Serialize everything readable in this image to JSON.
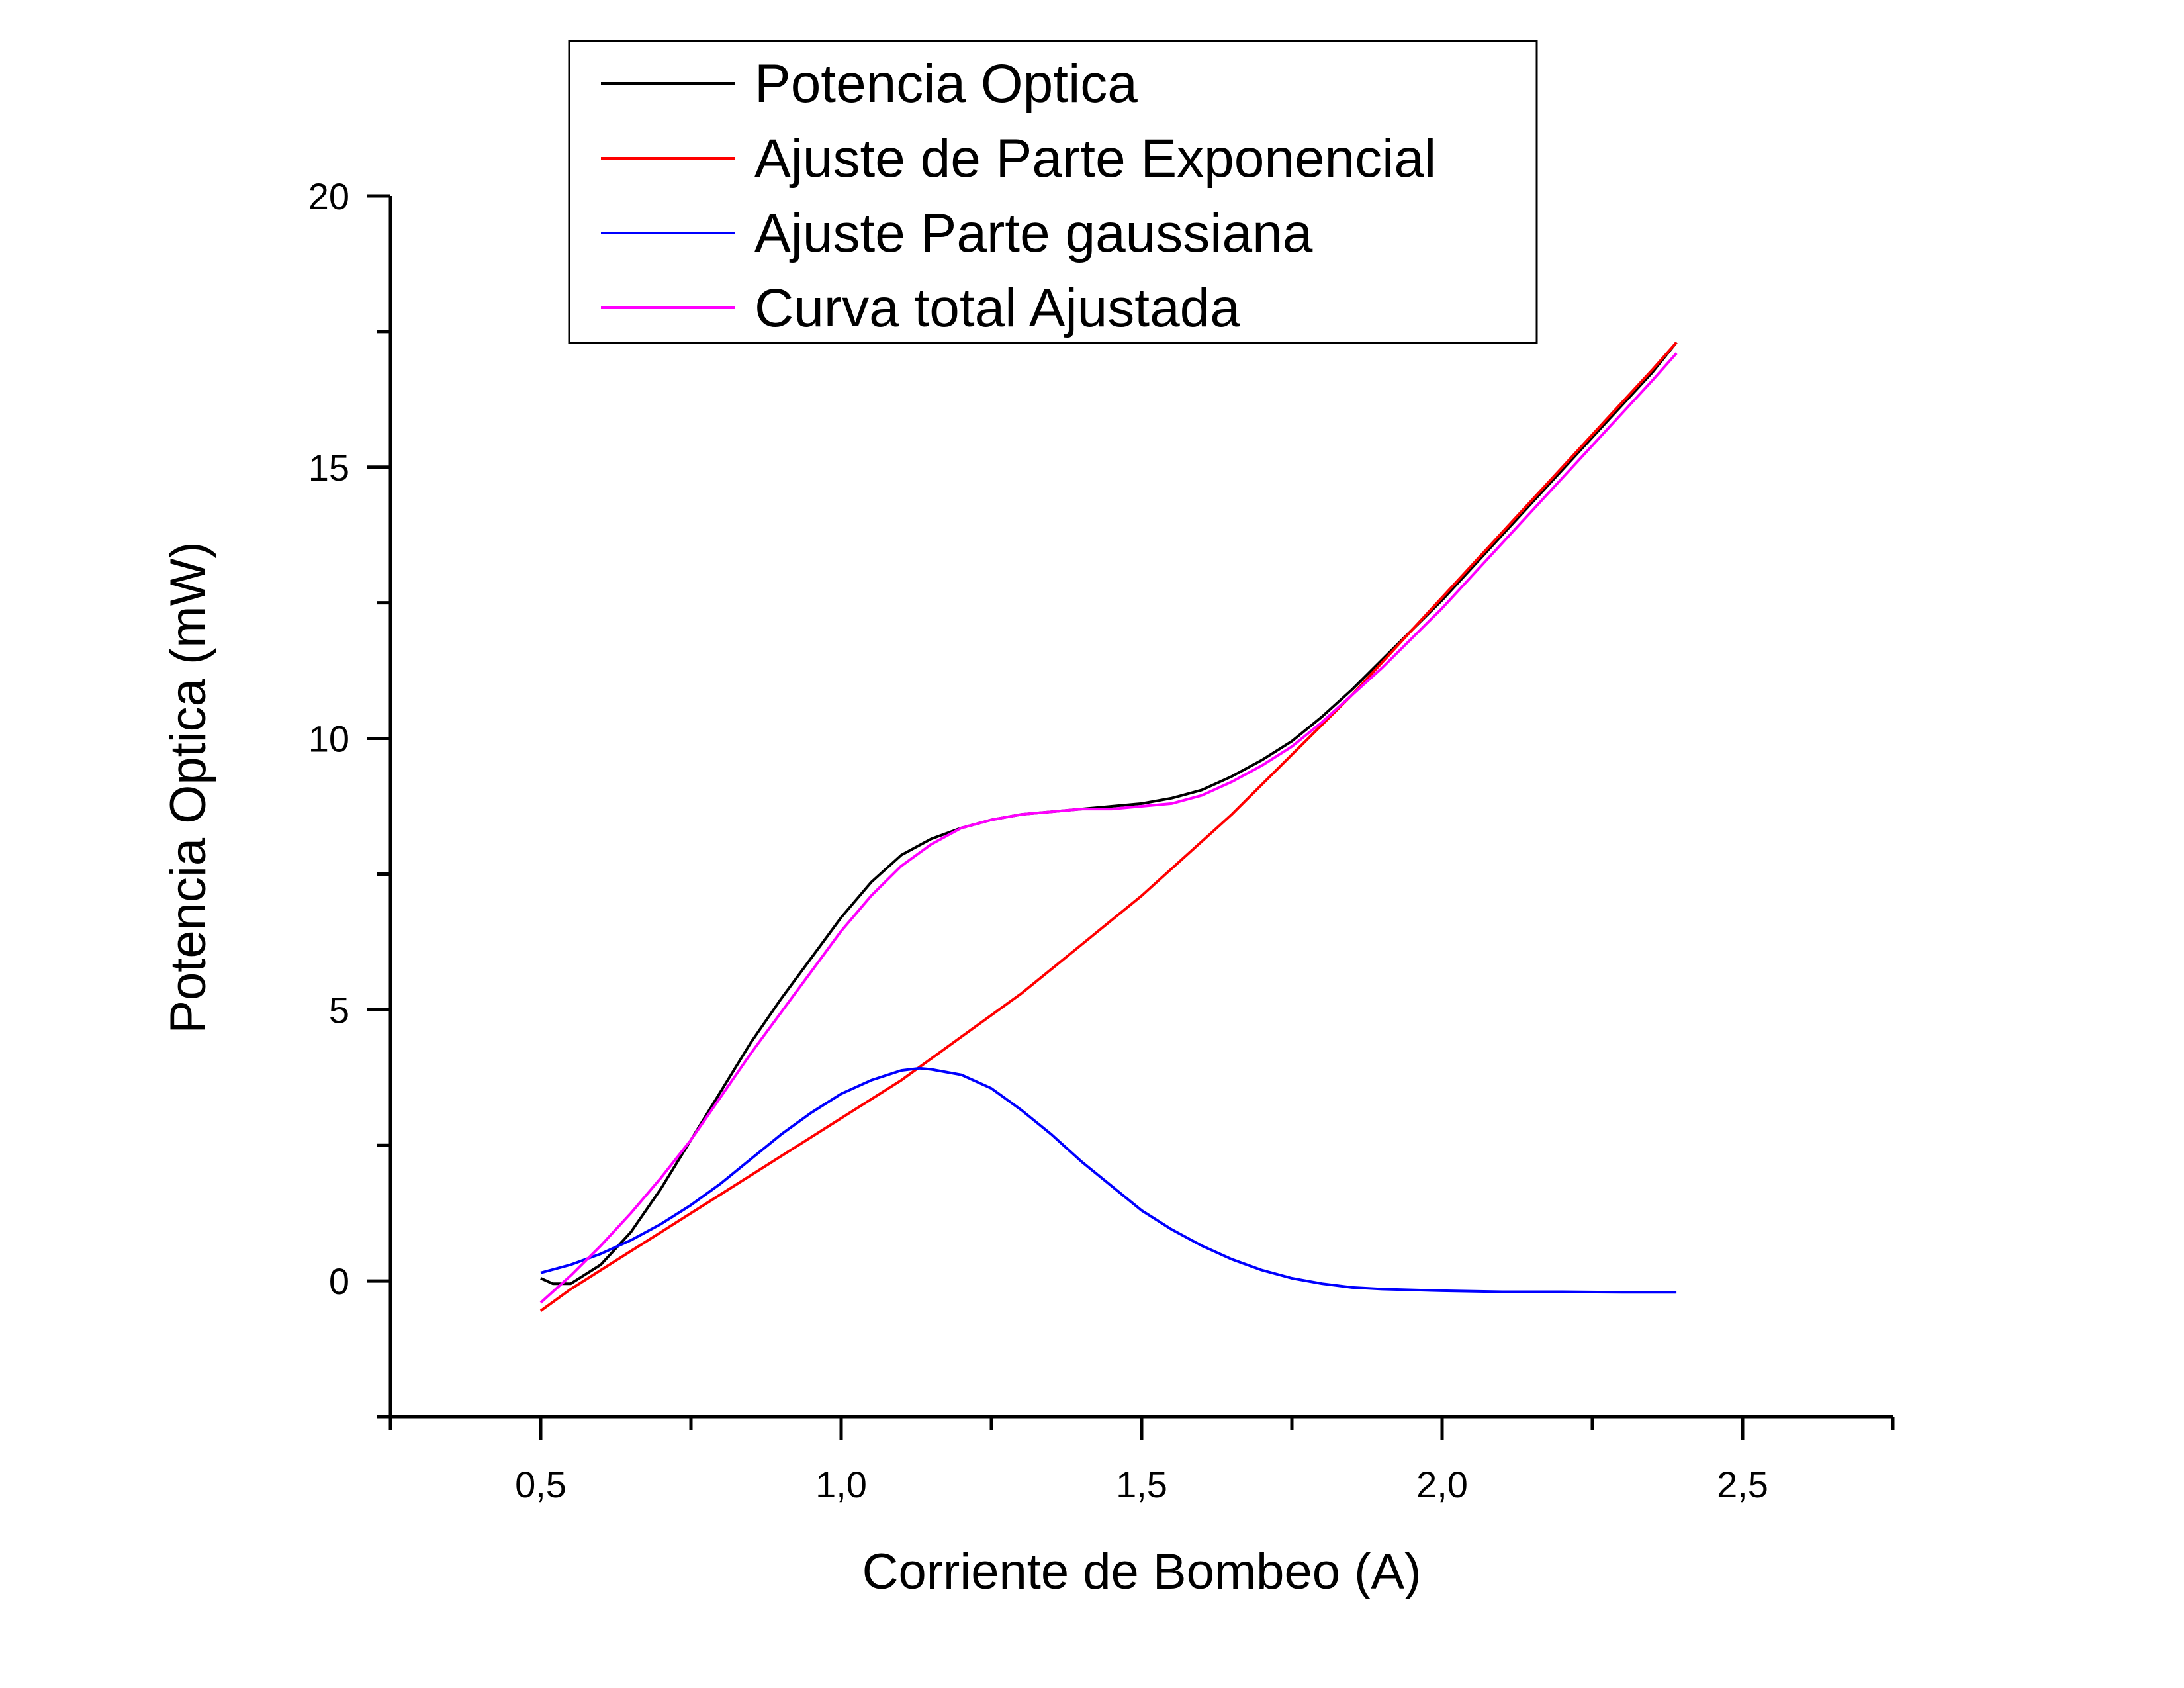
{
  "chart_data": {
    "type": "line",
    "xlabel": "Corriente de Bombeo (A)",
    "ylabel": "Potencia Optica (mW)",
    "xlim": [
      0.25,
      2.75
    ],
    "ylim": [
      -2.5,
      20
    ],
    "x_ticks": [
      {
        "value": 0.5,
        "label": "0,5"
      },
      {
        "value": 1.0,
        "label": "1,0"
      },
      {
        "value": 1.5,
        "label": "1,5"
      },
      {
        "value": 2.0,
        "label": "2,0"
      },
      {
        "value": 2.5,
        "label": "2,5"
      }
    ],
    "x_minor_ticks": [
      0.25,
      0.75,
      1.25,
      1.75,
      2.25,
      2.75
    ],
    "y_ticks": [
      {
        "value": 0,
        "label": "0"
      },
      {
        "value": 5,
        "label": "5"
      },
      {
        "value": 10,
        "label": "10"
      },
      {
        "value": 15,
        "label": "15"
      },
      {
        "value": 20,
        "label": "20"
      }
    ],
    "y_minor_ticks": [
      -2.5,
      2.5,
      7.5,
      12.5,
      17.5
    ],
    "grid": false,
    "legend_position": "top-center",
    "series": [
      {
        "name": "Potencia Optica",
        "color": "#000000",
        "points": [
          [
            0.5,
            0.05
          ],
          [
            0.52,
            -0.05
          ],
          [
            0.55,
            -0.05
          ],
          [
            0.6,
            0.3
          ],
          [
            0.65,
            0.9
          ],
          [
            0.7,
            1.7
          ],
          [
            0.75,
            2.6
          ],
          [
            0.8,
            3.5
          ],
          [
            0.85,
            4.4
          ],
          [
            0.9,
            5.2
          ],
          [
            0.95,
            5.95
          ],
          [
            1.0,
            6.7
          ],
          [
            1.05,
            7.35
          ],
          [
            1.1,
            7.85
          ],
          [
            1.15,
            8.15
          ],
          [
            1.2,
            8.35
          ],
          [
            1.25,
            8.5
          ],
          [
            1.3,
            8.6
          ],
          [
            1.35,
            8.65
          ],
          [
            1.4,
            8.7
          ],
          [
            1.45,
            8.75
          ],
          [
            1.5,
            8.8
          ],
          [
            1.55,
            8.9
          ],
          [
            1.6,
            9.05
          ],
          [
            1.65,
            9.3
          ],
          [
            1.7,
            9.6
          ],
          [
            1.75,
            9.95
          ],
          [
            1.8,
            10.4
          ],
          [
            1.85,
            10.9
          ],
          [
            1.9,
            11.45
          ],
          [
            1.95,
            12.0
          ],
          [
            2.0,
            12.55
          ],
          [
            2.05,
            13.15
          ],
          [
            2.1,
            13.75
          ],
          [
            2.15,
            14.35
          ],
          [
            2.2,
            14.95
          ],
          [
            2.25,
            15.55
          ],
          [
            2.3,
            16.15
          ],
          [
            2.35,
            16.75
          ],
          [
            2.39,
            17.3
          ]
        ]
      },
      {
        "name": "Ajuste de Parte Exponencial",
        "color": "#ff0000",
        "points": [
          [
            0.5,
            -0.55
          ],
          [
            0.55,
            -0.15
          ],
          [
            0.6,
            0.2
          ],
          [
            0.65,
            0.55
          ],
          [
            0.7,
            0.9
          ],
          [
            0.75,
            1.25
          ],
          [
            0.8,
            1.6
          ],
          [
            0.85,
            1.95
          ],
          [
            0.9,
            2.3
          ],
          [
            0.95,
            2.65
          ],
          [
            1.0,
            3.0
          ],
          [
            1.05,
            3.35
          ],
          [
            1.1,
            3.7
          ],
          [
            1.15,
            4.1
          ],
          [
            1.2,
            4.5
          ],
          [
            1.25,
            4.9
          ],
          [
            1.3,
            5.3
          ],
          [
            1.35,
            5.75
          ],
          [
            1.4,
            6.2
          ],
          [
            1.45,
            6.65
          ],
          [
            1.5,
            7.1
          ],
          [
            1.55,
            7.6
          ],
          [
            1.6,
            8.1
          ],
          [
            1.65,
            8.6
          ],
          [
            1.7,
            9.15
          ],
          [
            1.75,
            9.7
          ],
          [
            1.8,
            10.25
          ],
          [
            1.85,
            10.8
          ],
          [
            1.9,
            11.4
          ],
          [
            1.95,
            12.0
          ],
          [
            2.0,
            12.6
          ],
          [
            2.05,
            13.2
          ],
          [
            2.1,
            13.8
          ],
          [
            2.15,
            14.4
          ],
          [
            2.2,
            15.0
          ],
          [
            2.25,
            15.6
          ],
          [
            2.3,
            16.2
          ],
          [
            2.35,
            16.8
          ],
          [
            2.39,
            17.3
          ]
        ]
      },
      {
        "name": "Ajuste Parte gaussiana",
        "color": "#0000ff",
        "points": [
          [
            0.5,
            0.15
          ],
          [
            0.55,
            0.3
          ],
          [
            0.6,
            0.5
          ],
          [
            0.65,
            0.75
          ],
          [
            0.7,
            1.05
          ],
          [
            0.75,
            1.4
          ],
          [
            0.8,
            1.8
          ],
          [
            0.85,
            2.25
          ],
          [
            0.9,
            2.7
          ],
          [
            0.95,
            3.1
          ],
          [
            1.0,
            3.45
          ],
          [
            1.05,
            3.7
          ],
          [
            1.1,
            3.88
          ],
          [
            1.13,
            3.92
          ],
          [
            1.15,
            3.9
          ],
          [
            1.2,
            3.8
          ],
          [
            1.25,
            3.55
          ],
          [
            1.3,
            3.15
          ],
          [
            1.35,
            2.7
          ],
          [
            1.4,
            2.2
          ],
          [
            1.45,
            1.75
          ],
          [
            1.5,
            1.3
          ],
          [
            1.55,
            0.95
          ],
          [
            1.6,
            0.65
          ],
          [
            1.65,
            0.4
          ],
          [
            1.7,
            0.2
          ],
          [
            1.75,
            0.05
          ],
          [
            1.8,
            -0.05
          ],
          [
            1.85,
            -0.12
          ],
          [
            1.9,
            -0.15
          ],
          [
            2.0,
            -0.18
          ],
          [
            2.1,
            -0.2
          ],
          [
            2.2,
            -0.2
          ],
          [
            2.3,
            -0.21
          ],
          [
            2.39,
            -0.21
          ]
        ]
      },
      {
        "name": "Curva total Ajustada",
        "color": "#ff00ff",
        "points": [
          [
            0.5,
            -0.4
          ],
          [
            0.55,
            0.1
          ],
          [
            0.6,
            0.65
          ],
          [
            0.65,
            1.25
          ],
          [
            0.7,
            1.9
          ],
          [
            0.75,
            2.6
          ],
          [
            0.8,
            3.4
          ],
          [
            0.85,
            4.2
          ],
          [
            0.9,
            4.95
          ],
          [
            0.95,
            5.7
          ],
          [
            1.0,
            6.45
          ],
          [
            1.05,
            7.1
          ],
          [
            1.1,
            7.65
          ],
          [
            1.15,
            8.05
          ],
          [
            1.2,
            8.35
          ],
          [
            1.25,
            8.5
          ],
          [
            1.3,
            8.6
          ],
          [
            1.35,
            8.65
          ],
          [
            1.4,
            8.7
          ],
          [
            1.45,
            8.7
          ],
          [
            1.5,
            8.75
          ],
          [
            1.55,
            8.8
          ],
          [
            1.6,
            8.95
          ],
          [
            1.65,
            9.2
          ],
          [
            1.7,
            9.5
          ],
          [
            1.75,
            9.85
          ],
          [
            1.8,
            10.3
          ],
          [
            1.85,
            10.8
          ],
          [
            1.9,
            11.3
          ],
          [
            1.95,
            11.85
          ],
          [
            2.0,
            12.4
          ],
          [
            2.05,
            13.0
          ],
          [
            2.1,
            13.6
          ],
          [
            2.15,
            14.2
          ],
          [
            2.2,
            14.8
          ],
          [
            2.25,
            15.4
          ],
          [
            2.3,
            16.0
          ],
          [
            2.35,
            16.6
          ],
          [
            2.39,
            17.1
          ]
        ]
      }
    ]
  }
}
